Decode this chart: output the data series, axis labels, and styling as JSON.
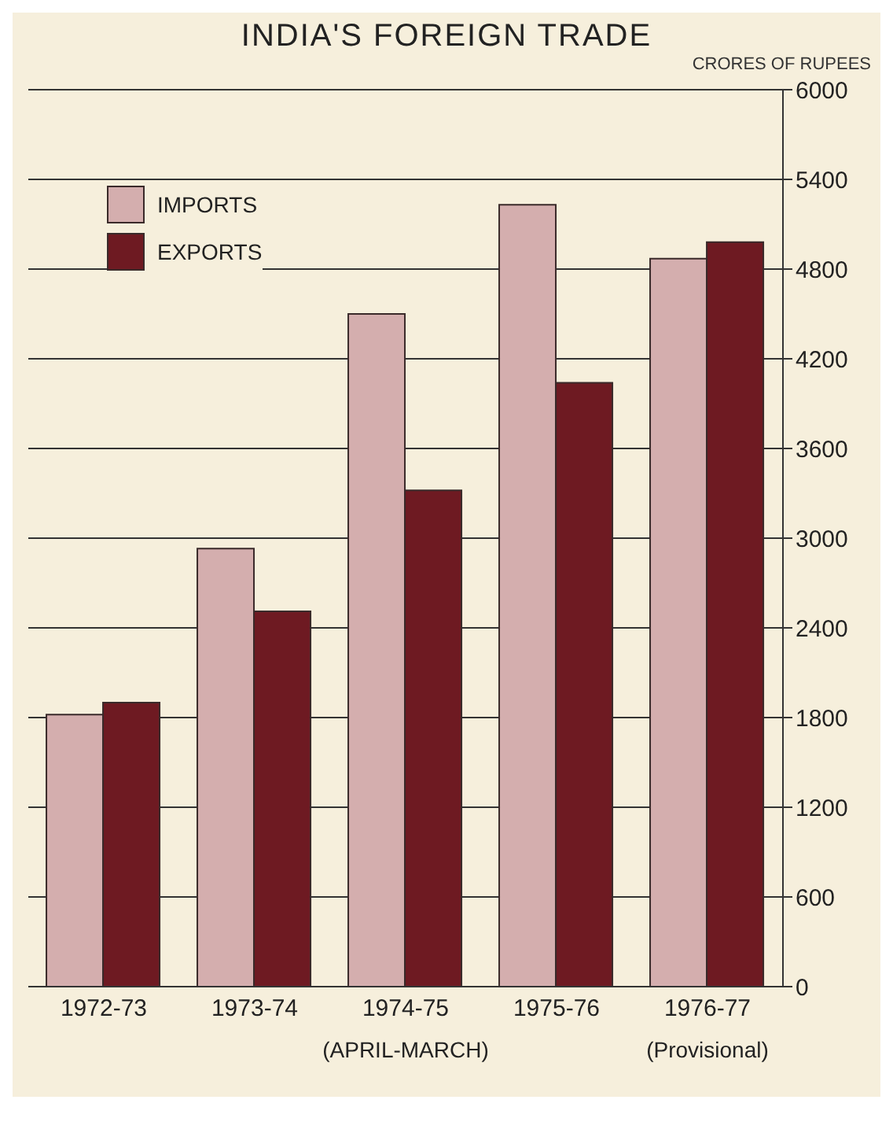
{
  "chart_data": {
    "type": "bar",
    "title": "INDIA'S FOREIGN TRADE",
    "ylabel": "CRORES OF RUPEES",
    "categories": [
      "1972-73",
      "1973-74",
      "1974-75",
      "1975-76",
      "1976-77"
    ],
    "series": [
      {
        "name": "IMPORTS",
        "color": "#d4aeae",
        "values": [
          1820,
          2930,
          4500,
          5230,
          4870
        ]
      },
      {
        "name": "EXPORTS",
        "color": "#6e1a22",
        "values": [
          1900,
          2510,
          3320,
          4040,
          4980
        ]
      }
    ],
    "ylim": [
      0,
      6000
    ],
    "yticks": [
      0,
      600,
      1200,
      1800,
      2400,
      3000,
      3600,
      4200,
      4800,
      5400,
      6000
    ],
    "grid": "y",
    "legend": "top left",
    "annotations": [
      "(APRIL-MARCH)",
      "(Provisional)"
    ]
  }
}
